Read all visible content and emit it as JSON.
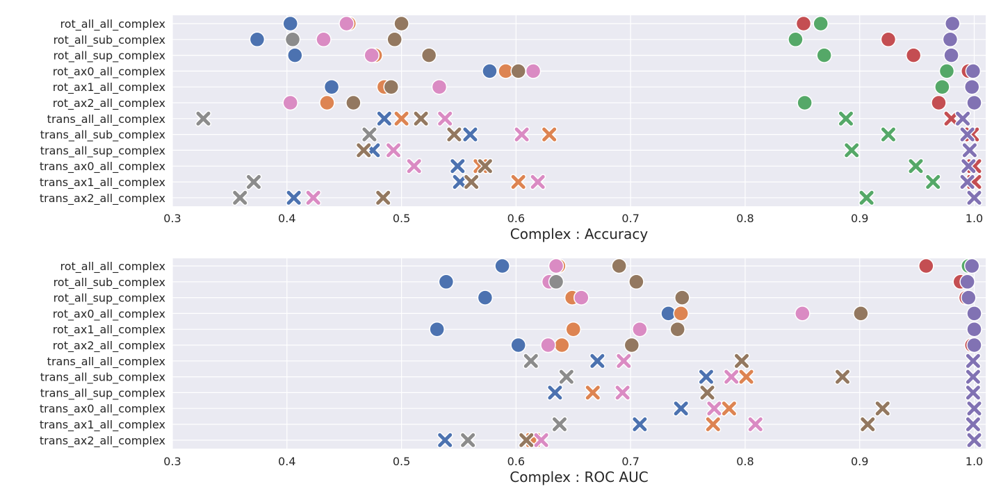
{
  "chart_data": [
    {
      "type": "scatter",
      "xlabel": "Complex : Accuracy",
      "xlim": [
        0.3,
        1.01
      ],
      "xticks": [
        "0.3",
        "0.4",
        "0.5",
        "0.6",
        "0.7",
        "0.8",
        "0.9",
        "1.0"
      ],
      "grid": true,
      "legend": "none",
      "categories": [
        "rot_all_all_complex",
        "rot_all_sub_complex",
        "rot_all_sup_complex",
        "rot_ax0_all_complex",
        "rot_ax1_all_complex",
        "rot_ax2_all_complex",
        "trans_all_all_complex",
        "trans_all_sub_complex",
        "trans_all_sup_complex",
        "trans_ax0_all_complex",
        "trans_ax1_all_complex",
        "trans_ax2_all_complex"
      ],
      "series": [
        {
          "color": "#4C72B0",
          "values": [
            0.403,
            0.374,
            0.407,
            0.577,
            0.439,
            null,
            0.485,
            0.56,
            0.475,
            0.549,
            0.551,
            0.406
          ]
        },
        {
          "color": "#DD8452",
          "values": [
            0.454,
            null,
            0.477,
            0.591,
            0.485,
            0.435,
            0.5,
            0.629,
            null,
            0.569,
            0.602,
            null
          ]
        },
        {
          "color": "#55A868",
          "values": [
            0.866,
            0.844,
            0.869,
            0.976,
            0.972,
            0.852,
            0.888,
            0.925,
            0.893,
            0.949,
            0.964,
            0.906
          ]
        },
        {
          "color": "#C44E52",
          "values": [
            0.851,
            0.925,
            0.947,
            0.995,
            0.998,
            0.969,
            0.98,
            0.998,
            null,
            1.0,
            1.0,
            null
          ]
        },
        {
          "color": "#8172B3",
          "values": [
            0.981,
            0.979,
            0.98,
            0.999,
            0.998,
            1.0,
            0.99,
            0.994,
            0.996,
            0.995,
            0.994,
            1.0
          ]
        },
        {
          "color": "#937860",
          "values": [
            0.5,
            0.494,
            0.524,
            0.602,
            0.491,
            0.458,
            0.517,
            0.546,
            0.467,
            0.573,
            0.561,
            0.484
          ]
        },
        {
          "color": "#DA8BC3",
          "values": [
            0.452,
            0.432,
            0.474,
            0.615,
            0.533,
            0.403,
            0.538,
            0.605,
            0.493,
            0.511,
            0.619,
            0.423
          ]
        },
        {
          "color": "#8C8C8C",
          "values": [
            null,
            0.405,
            null,
            null,
            null,
            null,
            0.327,
            0.472,
            null,
            null,
            0.371,
            0.359
          ]
        }
      ]
    },
    {
      "type": "scatter",
      "xlabel": "Complex : ROC AUC",
      "xlim": [
        0.3,
        1.01
      ],
      "xticks": [
        "0.3",
        "0.4",
        "0.5",
        "0.6",
        "0.7",
        "0.8",
        "0.9",
        "1.0"
      ],
      "grid": true,
      "legend": "none",
      "categories": [
        "rot_all_all_complex",
        "rot_all_sub_complex",
        "rot_all_sup_complex",
        "rot_ax0_all_complex",
        "rot_ax1_all_complex",
        "rot_ax2_all_complex",
        "trans_all_all_complex",
        "trans_all_sub_complex",
        "trans_all_sup_complex",
        "trans_ax0_all_complex",
        "trans_ax1_all_complex",
        "trans_ax2_all_complex"
      ],
      "series": [
        {
          "color": "#4C72B0",
          "values": [
            0.588,
            0.539,
            0.573,
            0.733,
            0.531,
            0.602,
            0.671,
            0.766,
            0.634,
            0.744,
            0.708,
            0.538
          ]
        },
        {
          "color": "#DD8452",
          "values": [
            0.637,
            null,
            0.649,
            0.744,
            0.65,
            0.64,
            null,
            0.801,
            0.667,
            0.786,
            0.772,
            0.615
          ]
        },
        {
          "color": "#55A868",
          "values": [
            0.995,
            null,
            null,
            null,
            null,
            null,
            null,
            null,
            null,
            null,
            null,
            null
          ]
        },
        {
          "color": "#C44E52",
          "values": [
            0.958,
            0.988,
            0.993,
            null,
            null,
            0.998,
            null,
            null,
            null,
            null,
            null,
            null
          ]
        },
        {
          "color": "#8172B3",
          "values": [
            0.998,
            0.994,
            0.995,
            1.0,
            1.0,
            1.0,
            0.999,
            0.999,
            0.999,
            1.0,
            0.999,
            1.0
          ]
        },
        {
          "color": "#937860",
          "values": [
            0.69,
            0.705,
            0.745,
            0.901,
            0.741,
            0.701,
            0.797,
            0.885,
            0.767,
            0.92,
            0.907,
            0.609
          ]
        },
        {
          "color": "#DA8BC3",
          "values": [
            0.635,
            0.629,
            0.657,
            0.85,
            0.708,
            0.628,
            0.694,
            0.788,
            0.693,
            0.773,
            0.809,
            0.622
          ]
        },
        {
          "color": "#8C8C8C",
          "values": [
            null,
            0.635,
            null,
            null,
            null,
            null,
            0.613,
            0.644,
            null,
            null,
            0.638,
            0.558
          ]
        }
      ]
    }
  ]
}
